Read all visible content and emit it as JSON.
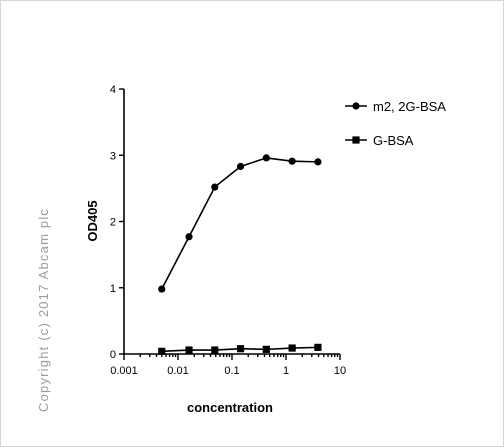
{
  "watermark": "Copyright (c) 2017 Abcam plc",
  "chart_data": {
    "type": "line",
    "title": "",
    "xlabel": "concentration",
    "ylabel": "OD405",
    "x_scale": "log",
    "xlim": [
      0.001,
      10
    ],
    "ylim": [
      0,
      4
    ],
    "x_ticks": [
      "0.001",
      "0.01",
      "0.1",
      "1",
      "10"
    ],
    "y_ticks": [
      "0",
      "1",
      "2",
      "3",
      "4"
    ],
    "grid": false,
    "legend_position": "top-right",
    "series": [
      {
        "name": "m2, 2G-BSA",
        "marker": "circle",
        "x": [
          0.005,
          0.016,
          0.048,
          0.144,
          0.432,
          1.3,
          3.9
        ],
        "y": [
          0.98,
          1.77,
          2.52,
          2.83,
          2.96,
          2.91,
          2.9
        ]
      },
      {
        "name": "G-BSA",
        "marker": "square",
        "x": [
          0.005,
          0.016,
          0.048,
          0.144,
          0.432,
          1.3,
          3.9
        ],
        "y": [
          0.04,
          0.06,
          0.06,
          0.08,
          0.07,
          0.09,
          0.1
        ]
      }
    ]
  }
}
